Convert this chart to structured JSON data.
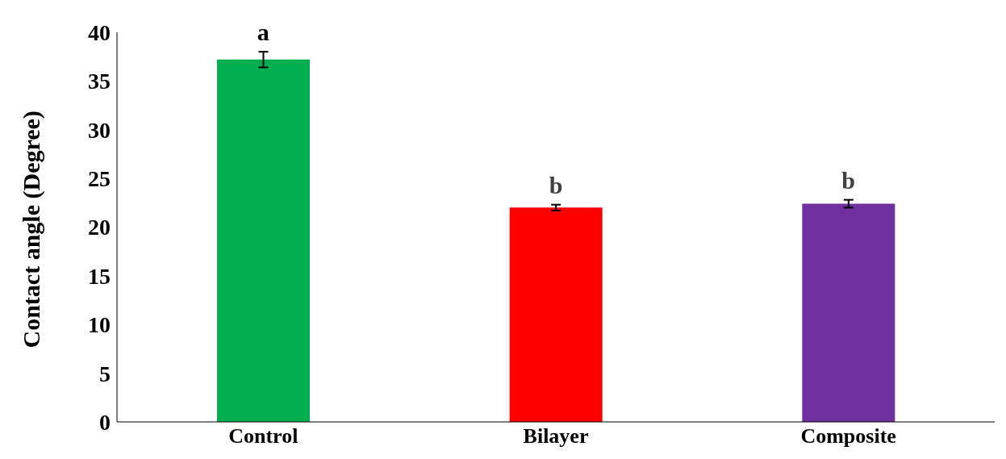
{
  "chart_data": {
    "type": "bar",
    "ylabel": "Contact angle (Degree)",
    "categories": [
      "Control",
      "Bilayer",
      "Composite"
    ],
    "values": [
      37.2,
      22.0,
      22.4
    ],
    "colors": [
      "#00b050",
      "#ff0000",
      "#7030a0"
    ],
    "errors": [
      0.8,
      0.3,
      0.4
    ],
    "ylim": [
      0,
      40
    ],
    "yticks": [
      0,
      5,
      10,
      15,
      20,
      25,
      30,
      35,
      40
    ],
    "grid": false,
    "annotations": [
      {
        "text": "a",
        "x": "Control",
        "y": 38
      },
      {
        "text": "b",
        "x": "Bilayer",
        "y": 22.3
      },
      {
        "text": "b",
        "x": "Composite",
        "y": 22.8
      }
    ]
  }
}
